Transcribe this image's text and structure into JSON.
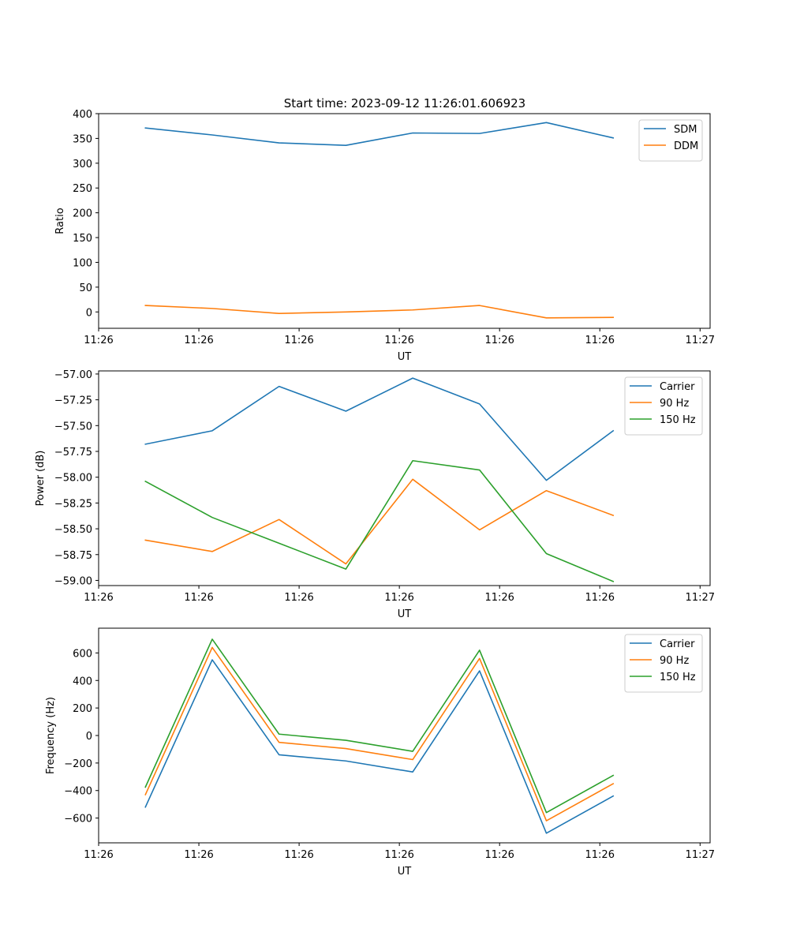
{
  "figure": {
    "title": "Start time: 2023-09-12 11:26:01.606923"
  },
  "chart_data": [
    {
      "type": "line",
      "xlabel": "UT",
      "ylabel": "Ratio",
      "x": [
        0,
        1,
        2,
        3,
        4,
        5,
        6,
        7
      ],
      "xlim": [
        -0.7,
        8.45
      ],
      "xticks": [
        -0.7,
        0.8,
        2.3,
        3.8,
        5.3,
        6.8,
        8.3
      ],
      "xtick_labels": [
        "11:26",
        "11:26",
        "11:26",
        "11:26",
        "11:26",
        "11:26",
        "11:27"
      ],
      "ylim": [
        -33,
        400
      ],
      "yticks": [
        0,
        50,
        100,
        150,
        200,
        250,
        300,
        350,
        400
      ],
      "ytick_labels": [
        "0",
        "50",
        "100",
        "150",
        "200",
        "250",
        "300",
        "350",
        "400"
      ],
      "series": [
        {
          "name": "SDM",
          "color": "#1f77b4",
          "values": [
            371,
            357,
            341,
            336,
            361,
            360,
            382,
            351
          ]
        },
        {
          "name": "DDM",
          "color": "#ff7f0e",
          "values": [
            13,
            7,
            -3,
            0,
            4,
            13,
            -12,
            -11
          ]
        }
      ],
      "legend": "top-right"
    },
    {
      "type": "line",
      "xlabel": "UT",
      "ylabel": "Power (dB)",
      "x": [
        0,
        1,
        2,
        3,
        4,
        5,
        6,
        7
      ],
      "xlim": [
        -0.7,
        8.45
      ],
      "xticks": [
        -0.7,
        0.8,
        2.3,
        3.8,
        5.3,
        6.8,
        8.3
      ],
      "xtick_labels": [
        "11:26",
        "11:26",
        "11:26",
        "11:26",
        "11:26",
        "11:26",
        "11:27"
      ],
      "ylim": [
        -59.05,
        -56.97
      ],
      "yticks": [
        -59.0,
        -58.75,
        -58.5,
        -58.25,
        -58.0,
        -57.75,
        -57.5,
        -57.25,
        -57.0
      ],
      "ytick_labels": [
        "−59.00",
        "−58.75",
        "−58.50",
        "−58.25",
        "−58.00",
        "−57.75",
        "−57.50",
        "−57.25",
        "−57.00"
      ],
      "series": [
        {
          "name": "Carrier",
          "color": "#1f77b4",
          "values": [
            -57.68,
            -57.55,
            -57.12,
            -57.36,
            -57.04,
            -57.29,
            -58.03,
            -57.55
          ]
        },
        {
          "name": "90 Hz",
          "color": "#ff7f0e",
          "values": [
            -58.61,
            -58.72,
            -58.41,
            -58.84,
            -58.02,
            -58.51,
            -58.13,
            -58.37
          ]
        },
        {
          "name": "150 Hz",
          "color": "#2ca02c",
          "values": [
            -58.04,
            -58.39,
            -58.64,
            -58.89,
            -57.84,
            -57.93,
            -58.74,
            -59.01
          ]
        }
      ],
      "legend": "top-right"
    },
    {
      "type": "line",
      "xlabel": "UT",
      "ylabel": "Frequency (Hz)",
      "x": [
        0,
        1,
        2,
        3,
        4,
        5,
        6,
        7
      ],
      "xlim": [
        -0.7,
        8.45
      ],
      "xticks": [
        -0.7,
        0.8,
        2.3,
        3.8,
        5.3,
        6.8,
        8.3
      ],
      "xtick_labels": [
        "11:26",
        "11:26",
        "11:26",
        "11:26",
        "11:26",
        "11:26",
        "11:27"
      ],
      "ylim": [
        -780,
        780
      ],
      "yticks": [
        -600,
        -400,
        -200,
        0,
        200,
        400,
        600
      ],
      "ytick_labels": [
        "−600",
        "−400",
        "−200",
        "0",
        "200",
        "400",
        "600"
      ],
      "series": [
        {
          "name": "Carrier",
          "color": "#1f77b4",
          "values": [
            -520,
            550,
            -140,
            -185,
            -265,
            470,
            -710,
            -440
          ]
        },
        {
          "name": "90 Hz",
          "color": "#ff7f0e",
          "values": [
            -430,
            640,
            -50,
            -95,
            -175,
            560,
            -620,
            -350
          ]
        },
        {
          "name": "150 Hz",
          "color": "#2ca02c",
          "values": [
            -375,
            700,
            10,
            -35,
            -115,
            620,
            -560,
            -290
          ]
        }
      ],
      "legend": "top-right"
    }
  ]
}
